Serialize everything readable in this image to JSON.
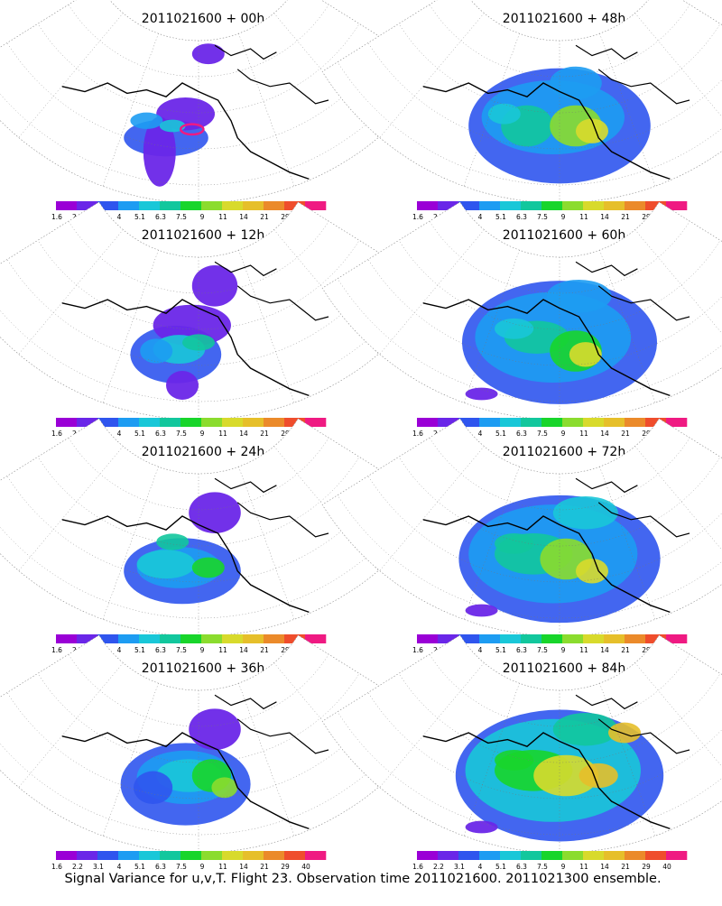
{
  "figure": {
    "caption": "Signal Variance for u,v,T. Flight 23. Observation time 2011021600. 2011021300 ensemble."
  },
  "colorbar": {
    "tick_labels": [
      "1.6",
      "2.2",
      "3.1",
      "4",
      "5.1",
      "6.3",
      "7.5",
      "9",
      "11",
      "14",
      "21",
      "29",
      "40"
    ],
    "colors": [
      "#9a00d6",
      "#6a26e8",
      "#2f55ee",
      "#1d9cf2",
      "#19c7d8",
      "#12c79d",
      "#18d52b",
      "#8bdc2e",
      "#d8da2c",
      "#e6bf2a",
      "#eb8a2a",
      "#ef4d2c",
      "#ef1a82"
    ]
  },
  "chart_data": [
    {
      "type": "heatmap",
      "title": "2011021600 + 00h",
      "forecast_hour": 0,
      "blobs": [
        [
          0.4,
          0.62,
          0.13,
          0.09,
          2
        ],
        [
          0.38,
          0.7,
          0.05,
          0.17,
          1
        ],
        [
          0.46,
          0.48,
          0.09,
          0.08,
          1
        ],
        [
          0.34,
          0.52,
          0.05,
          0.04,
          3
        ],
        [
          0.42,
          0.55,
          0.04,
          0.03,
          4
        ],
        [
          0.53,
          0.13,
          0.05,
          0.05,
          1
        ]
      ],
      "hot": [
        [
          0.48,
          0.57,
          0.035,
          0.03
        ]
      ]
    },
    {
      "type": "heatmap",
      "title": "2011021600 + 12h",
      "forecast_hour": 12,
      "blobs": [
        [
          0.43,
          0.62,
          0.14,
          0.14,
          2
        ],
        [
          0.48,
          0.45,
          0.12,
          0.1,
          1
        ],
        [
          0.44,
          0.59,
          0.08,
          0.07,
          4
        ],
        [
          0.37,
          0.6,
          0.05,
          0.06,
          3
        ],
        [
          0.5,
          0.55,
          0.05,
          0.04,
          5
        ],
        [
          0.45,
          0.8,
          0.05,
          0.07,
          1
        ],
        [
          0.55,
          0.22,
          0.07,
          0.1,
          1
        ]
      ],
      "hot": []
    },
    {
      "type": "heatmap",
      "title": "2011021600 + 24h",
      "forecast_hour": 24,
      "blobs": [
        [
          0.45,
          0.62,
          0.18,
          0.16,
          2
        ],
        [
          0.44,
          0.6,
          0.13,
          0.1,
          3
        ],
        [
          0.4,
          0.58,
          0.09,
          0.07,
          4
        ],
        [
          0.53,
          0.6,
          0.05,
          0.05,
          6
        ],
        [
          0.42,
          0.45,
          0.05,
          0.04,
          5
        ],
        [
          0.55,
          0.28,
          0.08,
          0.1,
          1
        ]
      ],
      "hot": []
    },
    {
      "type": "heatmap",
      "title": "2011021600 + 36h",
      "forecast_hour": 36,
      "blobs": [
        [
          0.46,
          0.6,
          0.2,
          0.2,
          2
        ],
        [
          0.46,
          0.56,
          0.15,
          0.13,
          3
        ],
        [
          0.47,
          0.55,
          0.1,
          0.08,
          4
        ],
        [
          0.54,
          0.55,
          0.06,
          0.08,
          6
        ],
        [
          0.58,
          0.62,
          0.04,
          0.05,
          7
        ],
        [
          0.36,
          0.62,
          0.06,
          0.08,
          2
        ],
        [
          0.55,
          0.28,
          0.08,
          0.1,
          1
        ]
      ],
      "hot": []
    },
    {
      "type": "heatmap",
      "title": "2011021600 + 48h",
      "forecast_hour": 48,
      "blobs": [
        [
          0.5,
          0.55,
          0.28,
          0.28,
          2
        ],
        [
          0.48,
          0.5,
          0.22,
          0.18,
          3
        ],
        [
          0.4,
          0.55,
          0.08,
          0.1,
          5
        ],
        [
          0.55,
          0.55,
          0.08,
          0.1,
          7
        ],
        [
          0.6,
          0.58,
          0.05,
          0.06,
          8
        ],
        [
          0.33,
          0.48,
          0.05,
          0.05,
          4
        ],
        [
          0.55,
          0.3,
          0.08,
          0.08,
          3
        ]
      ],
      "hot": []
    },
    {
      "type": "heatmap",
      "title": "2011021600 + 60h",
      "forecast_hour": 60,
      "blobs": [
        [
          0.5,
          0.55,
          0.3,
          0.3,
          2
        ],
        [
          0.48,
          0.52,
          0.24,
          0.22,
          3
        ],
        [
          0.43,
          0.52,
          0.1,
          0.08,
          5
        ],
        [
          0.55,
          0.6,
          0.08,
          0.1,
          6
        ],
        [
          0.58,
          0.62,
          0.05,
          0.06,
          8
        ],
        [
          0.36,
          0.47,
          0.06,
          0.05,
          4
        ],
        [
          0.56,
          0.28,
          0.1,
          0.08,
          3
        ],
        [
          0.26,
          0.85,
          0.05,
          0.03,
          1
        ]
      ],
      "hot": []
    },
    {
      "type": "heatmap",
      "title": "2011021600 + 72h",
      "forecast_hour": 72,
      "blobs": [
        [
          0.5,
          0.55,
          0.31,
          0.31,
          2
        ],
        [
          0.48,
          0.52,
          0.26,
          0.24,
          3
        ],
        [
          0.42,
          0.52,
          0.12,
          0.1,
          5
        ],
        [
          0.52,
          0.55,
          0.08,
          0.1,
          7
        ],
        [
          0.6,
          0.62,
          0.05,
          0.06,
          8
        ],
        [
          0.36,
          0.46,
          0.06,
          0.05,
          5
        ],
        [
          0.58,
          0.28,
          0.1,
          0.08,
          4
        ],
        [
          0.26,
          0.85,
          0.05,
          0.03,
          1
        ]
      ],
      "hot": []
    },
    {
      "type": "heatmap",
      "title": "2011021600 + 84h",
      "forecast_hour": 84,
      "blobs": [
        [
          0.5,
          0.55,
          0.32,
          0.32,
          2
        ],
        [
          0.48,
          0.52,
          0.27,
          0.25,
          4
        ],
        [
          0.42,
          0.52,
          0.12,
          0.1,
          6
        ],
        [
          0.52,
          0.55,
          0.1,
          0.1,
          8
        ],
        [
          0.62,
          0.55,
          0.06,
          0.06,
          9
        ],
        [
          0.36,
          0.46,
          0.06,
          0.05,
          6
        ],
        [
          0.58,
          0.28,
          0.1,
          0.08,
          5
        ],
        [
          0.7,
          0.3,
          0.05,
          0.05,
          9
        ],
        [
          0.26,
          0.85,
          0.05,
          0.03,
          1
        ]
      ],
      "hot": []
    }
  ]
}
